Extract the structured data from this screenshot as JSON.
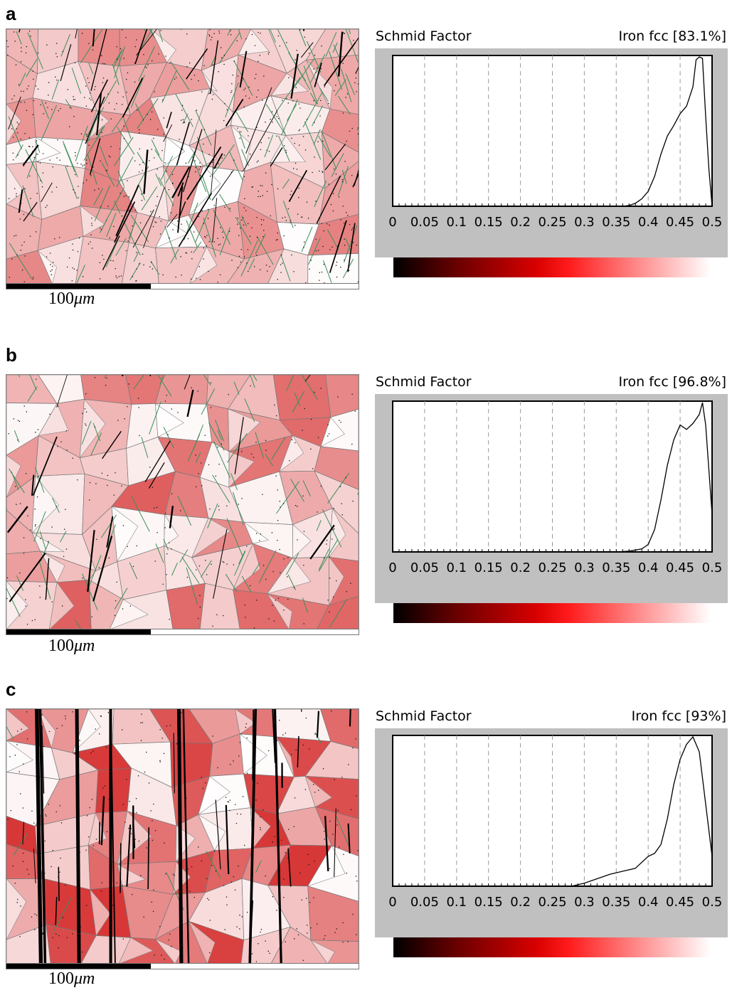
{
  "panels": [
    {
      "letter": "a",
      "scale_text": "100",
      "scale_unit": "μm",
      "histogram": {
        "title": "Schmid Factor",
        "phase": "Iron fcc [83.1%]",
        "chart_data": {
          "type": "line",
          "xlim": [
            0,
            0.5
          ],
          "xticks": [
            "0",
            "0.05",
            "0.1",
            "0.15",
            "0.2",
            "0.25",
            "0.3",
            "0.35",
            "0.4",
            "0.45",
            "0.5"
          ],
          "gridlines_dashed": true,
          "x": [
            0.36,
            0.37,
            0.38,
            0.39,
            0.4,
            0.41,
            0.42,
            0.43,
            0.44,
            0.45,
            0.46,
            0.47,
            0.475,
            0.48,
            0.485,
            0.49,
            0.495,
            0.5
          ],
          "y": [
            0,
            0.005,
            0.02,
            0.05,
            0.1,
            0.2,
            0.35,
            0.47,
            0.54,
            0.62,
            0.67,
            0.8,
            0.98,
            1.0,
            0.99,
            0.6,
            0.25,
            0
          ]
        }
      }
    },
    {
      "letter": "b",
      "scale_text": "100",
      "scale_unit": "μm",
      "histogram": {
        "title": "Schmid Factor",
        "phase": "Iron fcc [96.8%]",
        "chart_data": {
          "type": "line",
          "xlim": [
            0,
            0.5
          ],
          "xticks": [
            "0",
            "0.05",
            "0.1",
            "0.15",
            "0.2",
            "0.25",
            "0.3",
            "0.35",
            "0.4",
            "0.45",
            "0.5"
          ],
          "gridlines_dashed": true,
          "x": [
            0.35,
            0.37,
            0.39,
            0.4,
            0.41,
            0.42,
            0.43,
            0.44,
            0.45,
            0.46,
            0.47,
            0.48,
            0.485,
            0.49,
            0.495,
            0.5
          ],
          "y": [
            0,
            0.005,
            0.02,
            0.05,
            0.15,
            0.35,
            0.58,
            0.75,
            0.85,
            0.82,
            0.86,
            0.92,
            1.0,
            0.85,
            0.55,
            0.25
          ]
        }
      }
    },
    {
      "letter": "c",
      "scale_text": "100",
      "scale_unit": "μm",
      "histogram": {
        "title": "Schmid Factor",
        "phase": "Iron fcc [93%]",
        "chart_data": {
          "type": "line",
          "xlim": [
            0,
            0.5
          ],
          "xticks": [
            "0",
            "0.05",
            "0.1",
            "0.15",
            "0.2",
            "0.25",
            "0.3",
            "0.35",
            "0.4",
            "0.45",
            "0.5"
          ],
          "gridlines_dashed": true,
          "x": [
            0.28,
            0.3,
            0.32,
            0.34,
            0.36,
            0.38,
            0.4,
            0.41,
            0.42,
            0.43,
            0.44,
            0.45,
            0.46,
            0.47,
            0.48,
            0.49,
            0.5
          ],
          "y": [
            0,
            0.02,
            0.05,
            0.08,
            0.1,
            0.12,
            0.2,
            0.22,
            0.28,
            0.45,
            0.68,
            0.85,
            0.95,
            1.0,
            0.9,
            0.55,
            0.2
          ]
        }
      }
    }
  ]
}
